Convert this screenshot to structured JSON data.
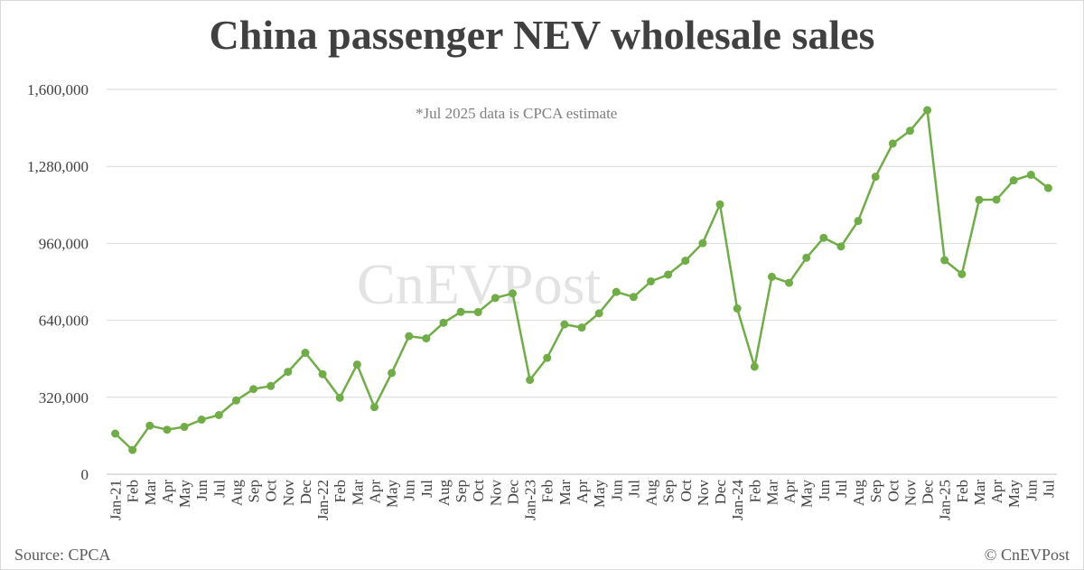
{
  "chart_data": {
    "type": "line",
    "title": "China passenger NEV wholesale sales",
    "annotation": "*Jul 2025 data is CPCA estimate",
    "watermark": "CnEVPost",
    "source": "Source: CPCA",
    "copyright": "© CnEVPost",
    "ylim": [
      0,
      1600000
    ],
    "yticks": [
      "0",
      "320,000",
      "640,000",
      "960,000",
      "1,280,000",
      "1,600,000"
    ],
    "ytick_values": [
      0,
      320000,
      640000,
      960000,
      1280000,
      1600000
    ],
    "grid": true,
    "line_color": "#70ad47",
    "categories": [
      "Jan-21",
      "Feb",
      "Mar",
      "Apr",
      "May",
      "Jun",
      "Jul",
      "Aug",
      "Sep",
      "Oct",
      "Nov",
      "Dec",
      "Jan-22",
      "Feb",
      "Mar",
      "Apr",
      "May",
      "Jun",
      "Jul",
      "Aug",
      "Sep",
      "Oct",
      "Nov",
      "Dec",
      "Jan-23",
      "Feb",
      "Mar",
      "Apr",
      "May",
      "Jun",
      "Jul",
      "Aug",
      "Sep",
      "Oct",
      "Nov",
      "Dec",
      "Jan-24",
      "Feb",
      "Mar",
      "Apr",
      "May",
      "Jun",
      "Jul",
      "Aug",
      "Sep",
      "Oct",
      "Nov",
      "Dec",
      "Jan-25",
      "Feb",
      "Mar",
      "Apr",
      "May",
      "Jun",
      "Jul"
    ],
    "values": [
      169000,
      101000,
      202000,
      185000,
      197000,
      227000,
      246000,
      307000,
      354000,
      367000,
      426000,
      505000,
      416000,
      318000,
      456000,
      279000,
      421000,
      574000,
      565000,
      630000,
      675000,
      674000,
      733000,
      752000,
      392000,
      484000,
      623000,
      610000,
      669000,
      758000,
      737000,
      802000,
      830000,
      888000,
      961000,
      1122000,
      689000,
      447000,
      821000,
      796000,
      900000,
      983000,
      947000,
      1053000,
      1237000,
      1375000,
      1428000,
      1514000,
      890000,
      832000,
      1141000,
      1142000,
      1222000,
      1245000,
      1190000
    ]
  }
}
